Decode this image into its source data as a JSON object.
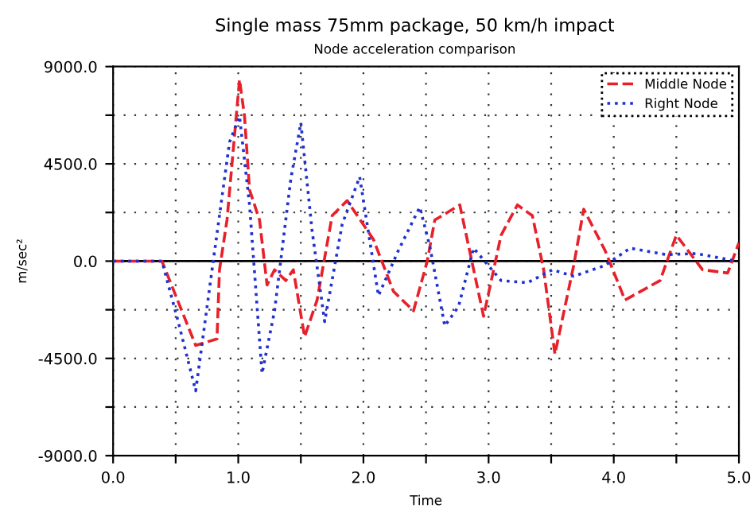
{
  "chart_data": {
    "type": "line",
    "title": "Single mass 75mm package, 50 km/h impact",
    "subtitle": "Node acceleration comparison",
    "xlabel": "Time",
    "ylabel": "m/sec²",
    "xlim": [
      0,
      5
    ],
    "xticks": [
      {
        "value": 0,
        "label": "0.0"
      },
      {
        "value": 0.5,
        "label": null
      },
      {
        "value": 1,
        "label": "1.0"
      },
      {
        "value": 1.5,
        "label": null
      },
      {
        "value": 2,
        "label": "2.0"
      },
      {
        "value": 2.5,
        "label": null
      },
      {
        "value": 3,
        "label": "3.0"
      },
      {
        "value": 3.5,
        "label": null
      },
      {
        "value": 4,
        "label": "4.0"
      },
      {
        "value": 4.5,
        "label": null
      },
      {
        "value": 5,
        "label": "5.0"
      }
    ],
    "ylim": [
      -9000,
      9000
    ],
    "yticks": [
      {
        "value": -9000,
        "label": "-9000.0"
      },
      {
        "value": -6750,
        "label": null
      },
      {
        "value": -4500,
        "label": "-4500.0"
      },
      {
        "value": -2250,
        "label": null
      },
      {
        "value": 0,
        "label": "0.0"
      },
      {
        "value": 2250,
        "label": null
      },
      {
        "value": 4500,
        "label": "4500.0"
      },
      {
        "value": 6750,
        "label": null
      },
      {
        "value": 9000,
        "label": "9000.0"
      }
    ],
    "grid": true,
    "legend": "top right",
    "ref_lines": [
      {
        "axis": "y",
        "value": 0,
        "color": "#000000",
        "line_style": "solid"
      }
    ],
    "series": [
      {
        "name": "Middle Node",
        "color": "#e8202a",
        "line_style": "dashed",
        "x": [
          0,
          0.39,
          0.66,
          0.83,
          0.85,
          0.91,
          1.01,
          1.05,
          1.09,
          1.17,
          1.23,
          1.29,
          1.38,
          1.44,
          1.53,
          1.63,
          1.75,
          1.87,
          2.08,
          2.24,
          2.4,
          2.51,
          2.57,
          2.77,
          2.96,
          3.1,
          3.23,
          3.35,
          3.44,
          3.53,
          3.68,
          3.76,
          3.93,
          4.09,
          4.37,
          4.5,
          4.71,
          4.91,
          5.0
        ],
        "values": [
          0,
          0,
          -3900,
          -3600,
          -400,
          1900,
          8400,
          6700,
          3300,
          1900,
          -1100,
          -400,
          -900,
          -400,
          -3500,
          -1800,
          2100,
          2800,
          1000,
          -1400,
          -2300,
          0,
          1900,
          2600,
          -2550,
          1200,
          2600,
          2100,
          -400,
          -4300,
          -200,
          2400,
          500,
          -1800,
          -900,
          1200,
          -400,
          -550,
          850
        ]
      },
      {
        "name": "Right Node",
        "color": "#2030d0",
        "line_style": "dotted",
        "x": [
          0,
          0.39,
          0.52,
          0.66,
          0.8,
          0.93,
          1.01,
          1.09,
          1.19,
          1.29,
          1.42,
          1.5,
          1.59,
          1.69,
          1.83,
          1.97,
          2.12,
          2.28,
          2.45,
          2.53,
          2.65,
          2.76,
          2.88,
          3.1,
          3.31,
          3.51,
          3.68,
          3.93,
          4.13,
          4.42,
          4.66,
          4.98
        ],
        "values": [
          0,
          0,
          -2800,
          -6000,
          0,
          5500,
          6700,
          2600,
          -5200,
          -2300,
          3800,
          6400,
          1400,
          -2800,
          1700,
          3900,
          -1600,
          500,
          2500,
          700,
          -3000,
          -2100,
          600,
          -900,
          -1000,
          -400,
          -700,
          -200,
          600,
          300,
          350,
          0
        ]
      }
    ]
  }
}
